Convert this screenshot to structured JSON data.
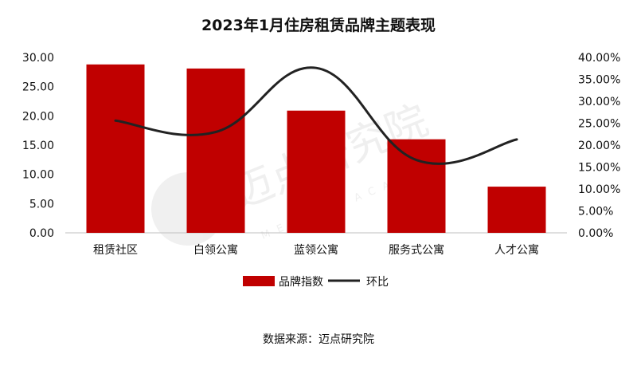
{
  "chart_data": {
    "type": "bar",
    "title": "2023年1月住房租赁品牌主题表现",
    "categories": [
      "租赁社区",
      "白领公寓",
      "蓝领公寓",
      "服务式公寓",
      "人才公寓"
    ],
    "series": [
      {
        "name": "品牌指数",
        "type": "bar",
        "axis": "left",
        "color": "#C00000",
        "values": [
          28.8,
          28.1,
          20.9,
          16.0,
          7.9
        ]
      },
      {
        "name": "环比",
        "type": "line",
        "axis": "right",
        "color": "#222222",
        "smooth": true,
        "values": [
          25.6,
          23.0,
          37.6,
          16.6,
          21.3
        ]
      }
    ],
    "y_left": {
      "ylim": [
        0,
        30
      ],
      "ticks": [
        "0.00",
        "5.00",
        "10.00",
        "15.00",
        "20.00",
        "25.00",
        "30.00"
      ]
    },
    "y_right": {
      "ylim": [
        0,
        40
      ],
      "ticks": [
        "0.00%",
        "5.00%",
        "10.00%",
        "15.00%",
        "20.00%",
        "25.00%",
        "30.00%",
        "35.00%",
        "40.00%"
      ]
    },
    "grid": false,
    "legend": "bottom",
    "source": "数据来源：迈点研究院"
  },
  "watermark": {
    "text": "迈点研究院",
    "subtext": "MEADIN ACADEMY"
  }
}
